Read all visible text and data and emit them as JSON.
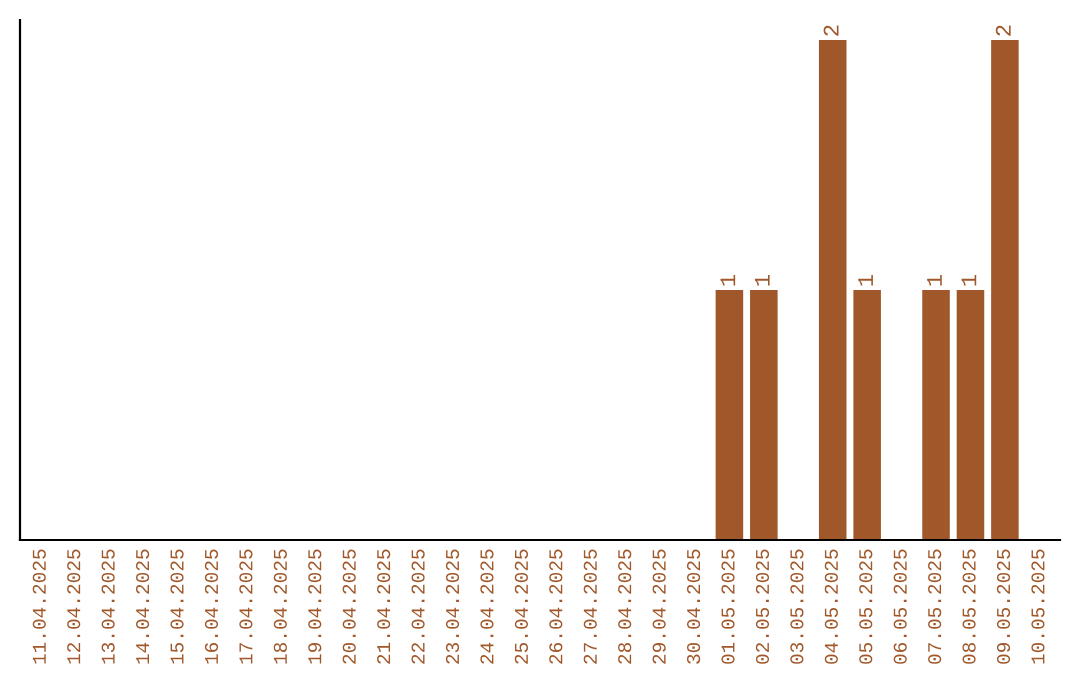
{
  "chart_data": {
    "type": "bar",
    "categories": [
      "11.04.2025",
      "12.04.2025",
      "13.04.2025",
      "14.04.2025",
      "15.04.2025",
      "16.04.2025",
      "17.04.2025",
      "18.04.2025",
      "19.04.2025",
      "20.04.2025",
      "21.04.2025",
      "22.04.2025",
      "23.04.2025",
      "24.04.2025",
      "25.04.2025",
      "26.04.2025",
      "27.04.2025",
      "28.04.2025",
      "29.04.2025",
      "30.04.2025",
      "01.05.2025",
      "02.05.2025",
      "03.05.2025",
      "04.05.2025",
      "05.05.2025",
      "06.05.2025",
      "07.05.2025",
      "08.05.2025",
      "09.05.2025",
      "10.05.2025"
    ],
    "values": [
      null,
      null,
      null,
      null,
      null,
      null,
      null,
      null,
      null,
      null,
      null,
      null,
      null,
      null,
      null,
      null,
      null,
      null,
      null,
      null,
      1,
      1,
      null,
      2,
      1,
      null,
      1,
      1,
      2,
      null
    ],
    "data_labels": true,
    "color": "#a0582a",
    "grid": false,
    "legend": false
  }
}
